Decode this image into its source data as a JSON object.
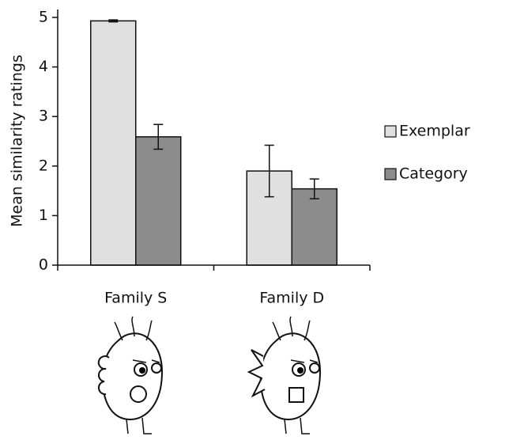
{
  "chart_data": {
    "type": "bar",
    "y_label": "Mean similarity ratings",
    "categories": [
      "Family S",
      "Family D"
    ],
    "series": [
      {
        "name": "Exemplar",
        "color": "#e0e0e0",
        "values": [
          4.93,
          1.9
        ],
        "errors": [
          0.02,
          0.52
        ]
      },
      {
        "name": "Category",
        "color": "#8c8c8c",
        "values": [
          2.59,
          1.54
        ],
        "errors": [
          0.25,
          0.2
        ]
      }
    ],
    "ylim": [
      0,
      5
    ],
    "yticks": [
      0,
      1,
      2,
      3,
      4,
      5
    ],
    "legend": "right"
  }
}
